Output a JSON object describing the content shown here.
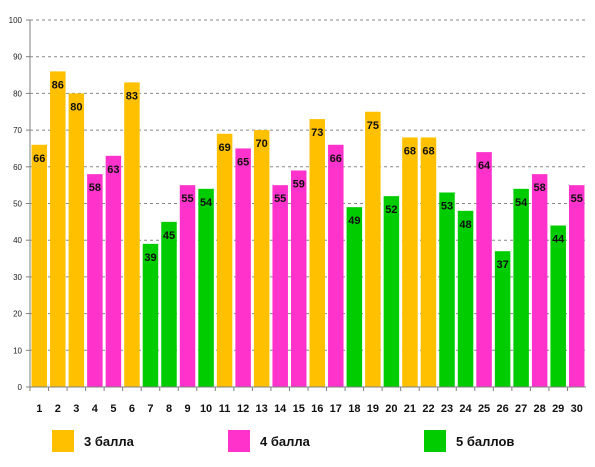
{
  "chart_data": {
    "type": "bar",
    "categories": [
      "1",
      "2",
      "3",
      "4",
      "5",
      "6",
      "7",
      "8",
      "9",
      "10",
      "11",
      "12",
      "13",
      "14",
      "15",
      "16",
      "17",
      "18",
      "19",
      "20",
      "21",
      "22",
      "23",
      "24",
      "25",
      "26",
      "27",
      "28",
      "29",
      "30"
    ],
    "values": [
      66,
      86,
      80,
      58,
      63,
      83,
      39,
      45,
      55,
      54,
      69,
      65,
      70,
      55,
      59,
      73,
      66,
      49,
      75,
      52,
      68,
      68,
      53,
      48,
      64,
      37,
      54,
      58,
      44,
      55
    ],
    "groups": [
      3,
      3,
      3,
      4,
      4,
      3,
      5,
      5,
      4,
      5,
      3,
      4,
      3,
      4,
      4,
      3,
      4,
      5,
      3,
      5,
      3,
      3,
      5,
      5,
      4,
      5,
      5,
      4,
      5,
      4
    ],
    "ylim": [
      0,
      100
    ],
    "yticks": [
      0,
      10,
      20,
      30,
      40,
      50,
      60,
      70,
      80,
      90,
      100
    ],
    "grid": true,
    "legend_position": "bottom",
    "series": [
      {
        "name": "3 балла",
        "group": 3,
        "color": "#FFC000"
      },
      {
        "name": "4 балла",
        "group": 4,
        "color": "#FF33CC"
      },
      {
        "name": "5 баллов",
        "group": 5,
        "color": "#00CC00"
      }
    ]
  }
}
